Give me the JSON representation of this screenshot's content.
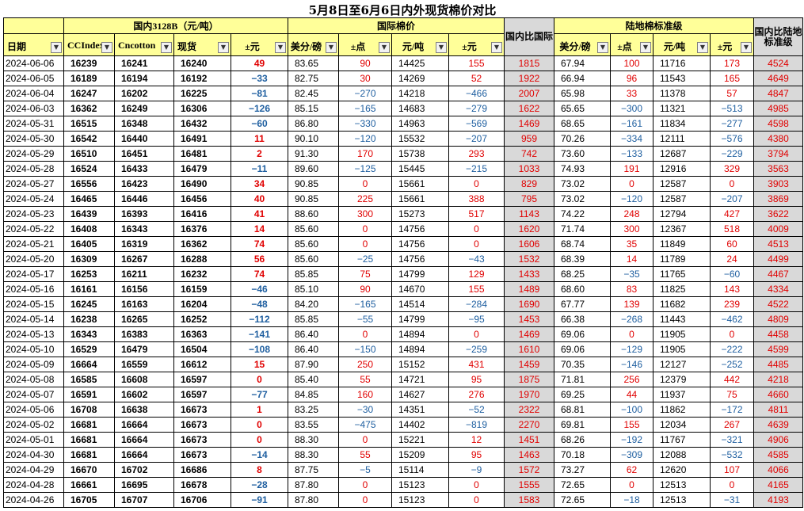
{
  "title": "5月8日至6月6日内外现货棉价对比",
  "groups": {
    "domestic": "国内3128B（元/吨）",
    "intl": "国际棉价",
    "china_vs_intl": "国内比国际",
    "land": "陆地棉标准级",
    "china_vs_land": "国内比陆地标准级"
  },
  "headers": [
    "日期",
    "CCIndex",
    "Cncotton",
    "现货",
    "±元",
    "美分/磅",
    "±点",
    "元/吨",
    "±元",
    "美分/磅",
    "±点",
    "元/吨",
    "±元"
  ],
  "dropdown_icon": "dropdown-arrow-icon",
  "colors": {
    "header_yellow": "#ffff99",
    "header_gray": "#d9d9d9",
    "positive": "#e00000",
    "negative": "#1f5fa0"
  },
  "rows": [
    [
      "2024-06-06",
      "16239",
      "16241",
      "16240",
      "49",
      "83.65",
      "90",
      "14425",
      "155",
      "1815",
      "67.94",
      "100",
      "11716",
      "173",
      "4524"
    ],
    [
      "2024-06-05",
      "16189",
      "16194",
      "16192",
      "−33",
      "82.75",
      "30",
      "14269",
      "52",
      "1922",
      "66.94",
      "96",
      "11543",
      "165",
      "4649"
    ],
    [
      "2024-06-04",
      "16247",
      "16202",
      "16225",
      "−81",
      "82.45",
      "−270",
      "14218",
      "−466",
      "2007",
      "65.98",
      "33",
      "11378",
      "57",
      "4847"
    ],
    [
      "2024-06-03",
      "16362",
      "16249",
      "16306",
      "−126",
      "85.15",
      "−165",
      "14683",
      "−279",
      "1622",
      "65.65",
      "−300",
      "11321",
      "−513",
      "4985"
    ],
    [
      "2024-05-31",
      "16515",
      "16348",
      "16432",
      "−60",
      "86.80",
      "−330",
      "14963",
      "−569",
      "1469",
      "68.65",
      "−161",
      "11834",
      "−277",
      "4598"
    ],
    [
      "2024-05-30",
      "16542",
      "16440",
      "16491",
      "11",
      "90.10",
      "−120",
      "15532",
      "−207",
      "959",
      "70.26",
      "−334",
      "12111",
      "−576",
      "4380"
    ],
    [
      "2024-05-29",
      "16510",
      "16451",
      "16481",
      "2",
      "91.30",
      "170",
      "15738",
      "293",
      "742",
      "73.60",
      "−133",
      "12687",
      "−229",
      "3794"
    ],
    [
      "2024-05-28",
      "16524",
      "16433",
      "16479",
      "−11",
      "89.60",
      "−125",
      "15445",
      "−215",
      "1033",
      "74.93",
      "191",
      "12916",
      "329",
      "3563"
    ],
    [
      "2024-05-27",
      "16556",
      "16423",
      "16490",
      "34",
      "90.85",
      "0",
      "15661",
      "0",
      "829",
      "73.02",
      "0",
      "12587",
      "0",
      "3903"
    ],
    [
      "2024-05-24",
      "16465",
      "16446",
      "16456",
      "40",
      "90.85",
      "225",
      "15661",
      "388",
      "795",
      "73.02",
      "−120",
      "12587",
      "−207",
      "3869"
    ],
    [
      "2024-05-23",
      "16439",
      "16393",
      "16416",
      "41",
      "88.60",
      "300",
      "15273",
      "517",
      "1143",
      "74.22",
      "248",
      "12794",
      "427",
      "3622"
    ],
    [
      "2024-05-22",
      "16408",
      "16343",
      "16376",
      "14",
      "85.60",
      "0",
      "14756",
      "0",
      "1620",
      "71.74",
      "300",
      "12367",
      "518",
      "4009"
    ],
    [
      "2024-05-21",
      "16405",
      "16319",
      "16362",
      "74",
      "85.60",
      "0",
      "14756",
      "0",
      "1606",
      "68.74",
      "35",
      "11849",
      "60",
      "4513"
    ],
    [
      "2024-05-20",
      "16309",
      "16267",
      "16288",
      "56",
      "85.60",
      "−25",
      "14756",
      "−43",
      "1532",
      "68.39",
      "14",
      "11789",
      "24",
      "4499"
    ],
    [
      "2024-05-17",
      "16253",
      "16211",
      "16232",
      "74",
      "85.85",
      "75",
      "14799",
      "129",
      "1433",
      "68.25",
      "−35",
      "11765",
      "−60",
      "4467"
    ],
    [
      "2024-05-16",
      "16161",
      "16156",
      "16159",
      "−46",
      "85.10",
      "90",
      "14670",
      "155",
      "1489",
      "68.60",
      "83",
      "11825",
      "143",
      "4334"
    ],
    [
      "2024-05-15",
      "16245",
      "16163",
      "16204",
      "−48",
      "84.20",
      "−165",
      "14514",
      "−284",
      "1690",
      "67.77",
      "139",
      "11682",
      "239",
      "4522"
    ],
    [
      "2024-05-14",
      "16238",
      "16265",
      "16252",
      "−112",
      "85.85",
      "−55",
      "14799",
      "−95",
      "1453",
      "66.38",
      "−268",
      "11443",
      "−462",
      "4809"
    ],
    [
      "2024-05-13",
      "16343",
      "16383",
      "16363",
      "−141",
      "86.40",
      "0",
      "14894",
      "0",
      "1469",
      "69.06",
      "0",
      "11905",
      "0",
      "4458"
    ],
    [
      "2024-05-10",
      "16529",
      "16479",
      "16504",
      "−108",
      "86.40",
      "−150",
      "14894",
      "−259",
      "1610",
      "69.06",
      "−129",
      "11905",
      "−222",
      "4599"
    ],
    [
      "2024-05-09",
      "16664",
      "16559",
      "16612",
      "15",
      "87.90",
      "250",
      "15152",
      "431",
      "1459",
      "70.35",
      "−146",
      "12127",
      "−252",
      "4485"
    ],
    [
      "2024-05-08",
      "16585",
      "16608",
      "16597",
      "0",
      "85.40",
      "55",
      "14721",
      "95",
      "1875",
      "71.81",
      "256",
      "12379",
      "442",
      "4218"
    ],
    [
      "2024-05-07",
      "16591",
      "16602",
      "16597",
      "−77",
      "84.85",
      "160",
      "14627",
      "276",
      "1970",
      "69.25",
      "44",
      "11937",
      "75",
      "4660"
    ],
    [
      "2024-05-06",
      "16708",
      "16638",
      "16673",
      "1",
      "83.25",
      "−30",
      "14351",
      "−52",
      "2322",
      "68.81",
      "−100",
      "11862",
      "−172",
      "4811"
    ],
    [
      "2024-05-02",
      "16681",
      "16664",
      "16673",
      "0",
      "83.55",
      "−475",
      "14402",
      "−819",
      "2270",
      "69.81",
      "155",
      "12034",
      "267",
      "4639"
    ],
    [
      "2024-05-01",
      "16681",
      "16664",
      "16673",
      "0",
      "88.30",
      "0",
      "15221",
      "12",
      "1451",
      "68.26",
      "−192",
      "11767",
      "−321",
      "4906"
    ],
    [
      "2024-04-30",
      "16681",
      "16664",
      "16673",
      "−14",
      "88.30",
      "55",
      "15209",
      "95",
      "1463",
      "70.18",
      "−309",
      "12088",
      "−532",
      "4585"
    ],
    [
      "2024-04-29",
      "16670",
      "16702",
      "16686",
      "8",
      "87.75",
      "−5",
      "15114",
      "−9",
      "1572",
      "73.27",
      "62",
      "12620",
      "107",
      "4066"
    ],
    [
      "2024-04-28",
      "16661",
      "16695",
      "16678",
      "−28",
      "87.80",
      "0",
      "15123",
      "0",
      "1555",
      "72.65",
      "0",
      "12513",
      "0",
      "4165"
    ],
    [
      "2024-04-26",
      "16705",
      "16707",
      "16706",
      "−91",
      "87.80",
      "0",
      "15123",
      "0",
      "1583",
      "72.65",
      "−18",
      "12513",
      "−31",
      "4193"
    ]
  ]
}
